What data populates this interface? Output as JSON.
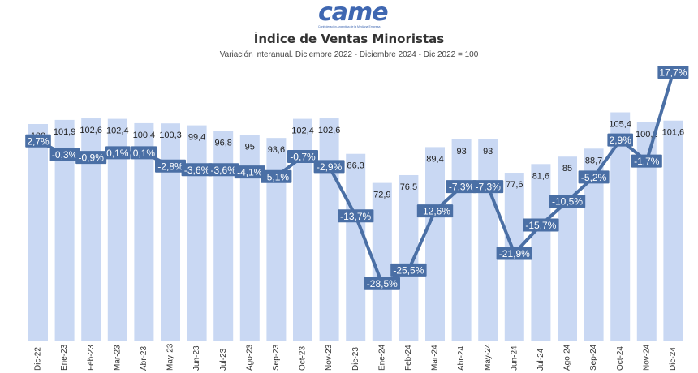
{
  "logo": {
    "name": "came",
    "subtitle": "Confederación Argentina de la Mediana Empresa"
  },
  "chart_data": {
    "type": "bar",
    "title": "Índice de Ventas Minoristas",
    "subtitle": "Variación interanual. Diciembre 2022 - Diciembre 2024 - Dic 2022 = 100",
    "categories": [
      "Dic-22",
      "Ene-23",
      "Feb-23",
      "Mar-23",
      "Abr-23",
      "May-23",
      "Jun-23",
      "Jul-23",
      "Ago-23",
      "Sep-23",
      "Oct-23",
      "Nov-23",
      "Dic-23",
      "Ene-24",
      "Feb-24",
      "Mar-24",
      "Abr-24",
      "May-24",
      "Jun-24",
      "Jul-24",
      "Ago-24",
      "Sep-24",
      "Oct-24",
      "Nov-24",
      "Dic-24"
    ],
    "series": [
      {
        "type": "bar",
        "values": [
          100,
          101.9,
          102.6,
          102.4,
          100.4,
          100.3,
          99.4,
          96.8,
          95,
          93.6,
          102.4,
          102.6,
          86.3,
          72.9,
          76.5,
          89.4,
          93,
          93,
          77.6,
          81.6,
          85,
          88.7,
          105.4,
          100.8,
          101.6
        ],
        "labels": [
          "100",
          "101,9",
          "102,6",
          "102,4",
          "100,4",
          "100,3",
          "99,4",
          "96,8",
          "95",
          "93,6",
          "102,4",
          "102,6",
          "86,3",
          "72,9",
          "76,5",
          "89,4",
          "93",
          "93",
          "77,6",
          "81,6",
          "85",
          "88,7",
          "105,4",
          "100,8",
          "101,6"
        ],
        "color": "#c9d8f3"
      },
      {
        "type": "line",
        "values": [
          2.7,
          -0.3,
          -0.9,
          0.1,
          0.1,
          -2.8,
          -3.6,
          -3.6,
          -4.1,
          -5.1,
          -0.7,
          -2.9,
          -13.7,
          -28.5,
          -25.5,
          -12.6,
          -7.3,
          -7.3,
          -21.9,
          -15.7,
          -10.5,
          -5.2,
          2.9,
          -1.7,
          17.7
        ],
        "labels": [
          "2,7%",
          "-0,3%",
          "-0,9%",
          "0,1%",
          "0,1%",
          "-2,8%",
          "-3,6%",
          "-3,6%",
          "-4,1%",
          "-5,1%",
          "-0,7%",
          "-2,9%",
          "-13,7%",
          "-28,5%",
          "-25,5%",
          "-12,6%",
          "-7,3%",
          "-7,3%",
          "-21,9%",
          "-15,7%",
          "-10,5%",
          "-5,2%",
          "2,9%",
          "-1,7%",
          "17,7%"
        ],
        "color": "#4a6fa5"
      }
    ],
    "grid": false,
    "legend": "none"
  }
}
